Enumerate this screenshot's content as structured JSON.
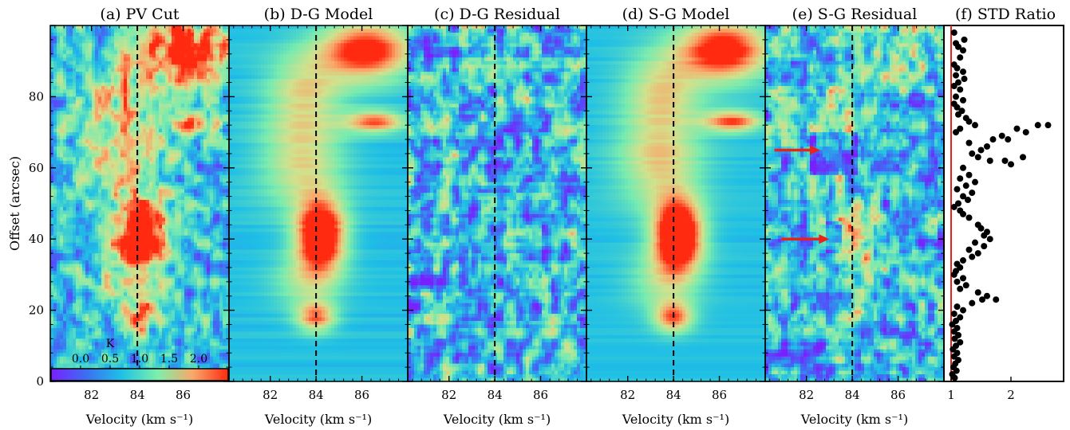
{
  "chart_data": [
    {
      "panel": "a",
      "type": "heatmap",
      "title": "(a) PV Cut",
      "xlabel": "Velocity (km s⁻¹)",
      "ylabel": "Offset (arcsec)",
      "xlim": [
        80.2,
        88.0
      ],
      "ylim": [
        0,
        100
      ],
      "xticks": [
        82,
        84,
        86
      ],
      "yticks": [
        0,
        20,
        40,
        60,
        80
      ],
      "reference_velocity": 84,
      "colorbar": {
        "label": "K",
        "ticks": [
          "0.0",
          "0.5",
          "1.0",
          "1.5",
          "2.0"
        ],
        "range": [
          -0.5,
          2.5
        ],
        "colormap": "rainbow"
      },
      "features": [
        {
          "offset": 41,
          "velocity": 84.2,
          "peak_K": 2.2
        },
        {
          "offset": 18,
          "velocity": 84.0,
          "peak_K": 1.2
        },
        {
          "offset": 93,
          "velocity": 86.2,
          "peak_K": 1.6
        }
      ]
    },
    {
      "panel": "b",
      "type": "heatmap",
      "title": "(b) D-G Model",
      "xlabel": "Velocity (km s⁻¹)",
      "xlim": [
        80.2,
        88.0
      ],
      "ylim": [
        0,
        100
      ],
      "xticks": [
        82,
        84,
        86
      ],
      "reference_velocity": 84
    },
    {
      "panel": "c",
      "type": "heatmap",
      "title": "(c) D-G Residual",
      "xlabel": "Velocity (km s⁻¹)",
      "xlim": [
        80.2,
        88.0
      ],
      "ylim": [
        0,
        100
      ],
      "xticks": [
        82,
        84,
        86
      ],
      "reference_velocity": 84
    },
    {
      "panel": "d",
      "type": "heatmap",
      "title": "(d) S-G Model",
      "xlabel": "Velocity (km s⁻¹)",
      "xlim": [
        80.2,
        88.0
      ],
      "ylim": [
        0,
        100
      ],
      "xticks": [
        82,
        84,
        86
      ],
      "reference_velocity": 84
    },
    {
      "panel": "e",
      "type": "heatmap",
      "title": "(e) S-G Residual",
      "xlabel": "Velocity (km s⁻¹)",
      "xlim": [
        80.2,
        88.0
      ],
      "ylim": [
        0,
        100
      ],
      "xticks": [
        82,
        84,
        86
      ],
      "reference_velocity": 84,
      "arrows": [
        {
          "offset": 65,
          "from_velocity": 80.6,
          "to_velocity": 82.6,
          "color": "#e8231c"
        },
        {
          "offset": 40,
          "from_velocity": 80.9,
          "to_velocity": 83.0,
          "color": "#e8231c"
        }
      ]
    },
    {
      "panel": "f",
      "type": "scatter",
      "title": "(f) STD Ratio",
      "xlim": [
        0.88,
        2.88
      ],
      "ylim": [
        0,
        100
      ],
      "xticks": [
        1,
        2
      ],
      "reference_line": {
        "x": 1,
        "color": "#e8231c"
      },
      "series": [
        {
          "color": "#000000",
          "points": [
            [
              1.22,
              96
            ],
            [
              1.05,
              98
            ],
            [
              1.08,
              95
            ],
            [
              1.12,
              94
            ],
            [
              1.2,
              93
            ],
            [
              1.15,
              91
            ],
            [
              1.05,
              89
            ],
            [
              1.1,
              88
            ],
            [
              1.2,
              87
            ],
            [
              1.08,
              86
            ],
            [
              1.12,
              84
            ],
            [
              1.22,
              85
            ],
            [
              1.05,
              83
            ],
            [
              1.15,
              82
            ],
            [
              1.08,
              80
            ],
            [
              1.2,
              79
            ],
            [
              1.05,
              78
            ],
            [
              1.1,
              77
            ],
            [
              1.18,
              76
            ],
            [
              1.12,
              75
            ],
            [
              1.25,
              74
            ],
            [
              1.3,
              73
            ],
            [
              1.4,
              72
            ],
            [
              1.15,
              71
            ],
            [
              1.08,
              70
            ],
            [
              2.45,
              72
            ],
            [
              2.62,
              72
            ],
            [
              2.1,
              71
            ],
            [
              2.25,
              70
            ],
            [
              1.85,
              69
            ],
            [
              1.95,
              68
            ],
            [
              1.7,
              68
            ],
            [
              1.3,
              67
            ],
            [
              1.6,
              66
            ],
            [
              1.5,
              65
            ],
            [
              1.35,
              64
            ],
            [
              1.45,
              63
            ],
            [
              1.9,
              62
            ],
            [
              2.2,
              63
            ],
            [
              2.0,
              61
            ],
            [
              1.65,
              62
            ],
            [
              1.2,
              60
            ],
            [
              1.3,
              58
            ],
            [
              1.15,
              57
            ],
            [
              1.4,
              56
            ],
            [
              1.25,
              55
            ],
            [
              1.1,
              54
            ],
            [
              1.35,
              53
            ],
            [
              1.2,
              52
            ],
            [
              1.28,
              51
            ],
            [
              1.12,
              50
            ],
            [
              1.05,
              49
            ],
            [
              1.15,
              48
            ],
            [
              1.2,
              47
            ],
            [
              1.3,
              46
            ],
            [
              1.45,
              44
            ],
            [
              1.5,
              43
            ],
            [
              1.6,
              42
            ],
            [
              1.55,
              41
            ],
            [
              1.65,
              40
            ],
            [
              1.4,
              39
            ],
            [
              1.55,
              38
            ],
            [
              1.3,
              37
            ],
            [
              1.45,
              36
            ],
            [
              1.35,
              35
            ],
            [
              1.2,
              34
            ],
            [
              1.1,
              33
            ],
            [
              1.15,
              32
            ],
            [
              1.08,
              31
            ],
            [
              1.05,
              30
            ],
            [
              1.2,
              29
            ],
            [
              1.1,
              28
            ],
            [
              1.25,
              27
            ],
            [
              1.15,
              26
            ],
            [
              1.45,
              25
            ],
            [
              1.6,
              24
            ],
            [
              1.75,
              23
            ],
            [
              1.52,
              23
            ],
            [
              1.35,
              22
            ],
            [
              1.1,
              21
            ],
            [
              1.2,
              20
            ],
            [
              1.05,
              19
            ],
            [
              1.15,
              18
            ],
            [
              1.08,
              17
            ],
            [
              1.02,
              16
            ],
            [
              1.1,
              15
            ],
            [
              1.05,
              14
            ],
            [
              1.12,
              13
            ],
            [
              1.06,
              12
            ],
            [
              1.15,
              11
            ],
            [
              1.08,
              10
            ],
            [
              1.03,
              9
            ],
            [
              1.1,
              8
            ],
            [
              1.05,
              7
            ],
            [
              1.12,
              6
            ],
            [
              1.07,
              5
            ],
            [
              1.04,
              4
            ],
            [
              1.09,
              3
            ],
            [
              1.02,
              2
            ],
            [
              1.06,
              1
            ]
          ]
        }
      ]
    }
  ]
}
